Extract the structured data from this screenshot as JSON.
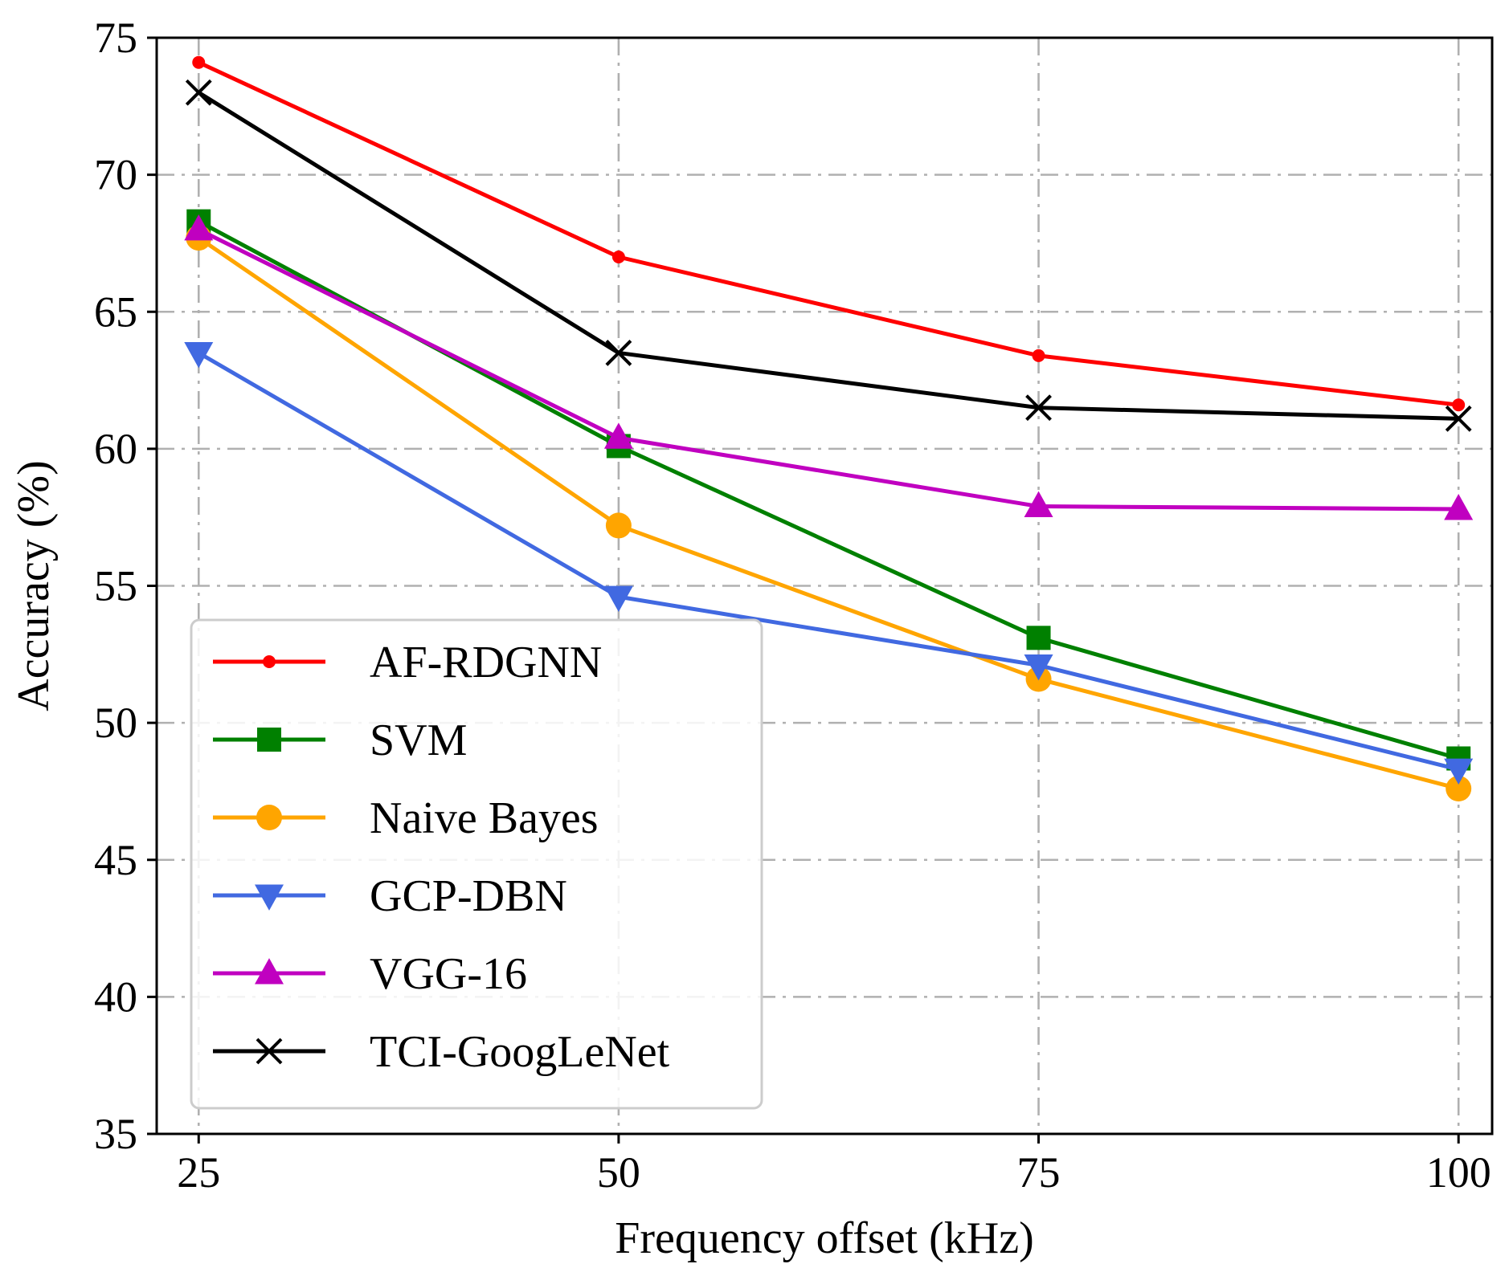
{
  "chart_data": {
    "type": "line",
    "title": "",
    "xlabel": "Frequency offset (kHz)",
    "ylabel": "Accuracy (%)",
    "x": [
      25,
      50,
      75,
      100
    ],
    "x_tick_labels": [
      "25",
      "50",
      "75",
      "100"
    ],
    "xlim": [
      22.5,
      102
    ],
    "ylim": [
      35,
      75
    ],
    "y_ticks": [
      35,
      40,
      45,
      50,
      55,
      60,
      65,
      70,
      75
    ],
    "y_tick_labels": [
      "35",
      "40",
      "45",
      "50",
      "55",
      "60",
      "65",
      "70",
      "75"
    ],
    "grid": true,
    "legend_position": "lower-left",
    "series": [
      {
        "name": "AF-RDGNN",
        "color": "#ff0000",
        "marker": "point",
        "values": [
          74.1,
          67.0,
          63.4,
          61.6
        ]
      },
      {
        "name": "SVM",
        "color": "#008000",
        "marker": "square",
        "values": [
          68.3,
          60.1,
          53.1,
          48.7
        ]
      },
      {
        "name": "Naive Bayes",
        "color": "#ffa500",
        "marker": "circle",
        "values": [
          67.7,
          57.2,
          51.6,
          47.6
        ]
      },
      {
        "name": "GCP-DBN",
        "color": "#4169e1",
        "marker": "triangle-down",
        "values": [
          63.5,
          54.6,
          52.1,
          48.3
        ]
      },
      {
        "name": "VGG-16",
        "color": "#c000c0",
        "marker": "triangle-up",
        "values": [
          68.0,
          60.4,
          57.9,
          57.8
        ]
      },
      {
        "name": "TCI-GoogLeNet",
        "color": "#000000",
        "marker": "x",
        "values": [
          73.0,
          63.5,
          61.5,
          61.1
        ]
      }
    ]
  }
}
